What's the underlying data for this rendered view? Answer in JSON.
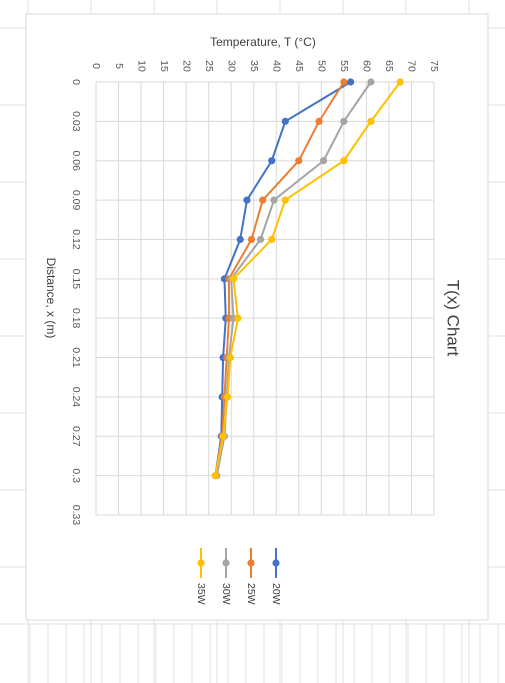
{
  "chart_data": {
    "type": "line",
    "title": "T(x) Chart",
    "xlabel": "Distance, x (m)",
    "ylabel": "Temperature, T (°C)",
    "x_ticks": [
      "0",
      "0.03",
      "0.06",
      "0.09",
      "0.12",
      "0.15",
      "0.18",
      "0.21",
      "0.24",
      "0.27",
      "0.3",
      "0.33"
    ],
    "y_ticks": [
      "0",
      "5",
      "10",
      "15",
      "20",
      "25",
      "30",
      "35",
      "40",
      "45",
      "50",
      "55",
      "60",
      "65",
      "70",
      "75"
    ],
    "xlim": [
      0,
      0.33
    ],
    "ylim": [
      0,
      75
    ],
    "x": [
      0,
      0.03,
      0.06,
      0.09,
      0.12,
      0.15,
      0.18,
      0.21,
      0.24,
      0.27,
      0.3
    ],
    "series": [
      {
        "name": "20W",
        "color": "#4472C4",
        "values": [
          56.5,
          42,
          39,
          33.5,
          32,
          28.5,
          28.8,
          28.2,
          28,
          27.8,
          26.5
        ]
      },
      {
        "name": "25W",
        "color": "#ED7D31",
        "values": [
          55,
          49.5,
          45,
          37,
          34.5,
          29.5,
          29.5,
          29,
          28.5,
          28,
          26.5
        ]
      },
      {
        "name": "30W",
        "color": "#A5A5A5",
        "values": [
          61,
          55,
          50.5,
          39.5,
          36.5,
          30,
          30.5,
          29.5,
          29,
          28.5,
          26.8
        ]
      },
      {
        "name": "35W",
        "color": "#FFC000",
        "values": [
          67.5,
          61,
          55,
          42,
          39,
          30.5,
          31.5,
          29.8,
          29.2,
          28.2,
          26.5
        ]
      }
    ],
    "grid": true,
    "legend": "bottom",
    "orientation": "rotated-90-clockwise"
  }
}
